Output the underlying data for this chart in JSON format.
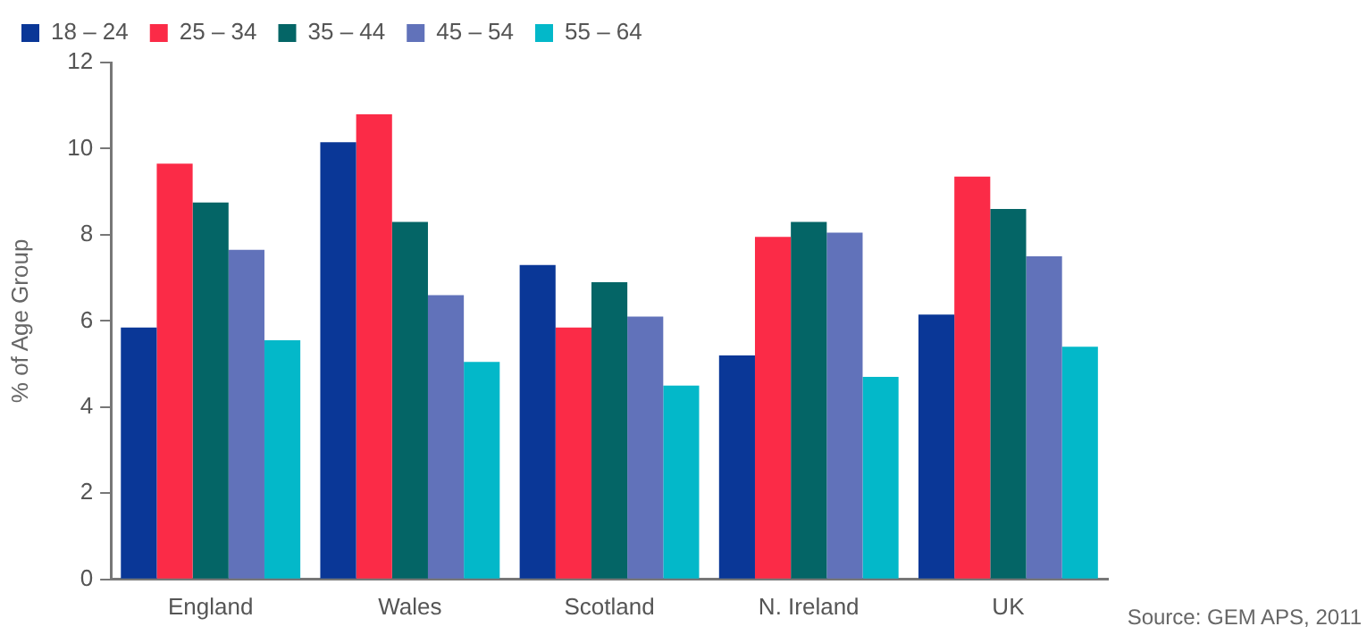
{
  "chart_data": {
    "type": "bar",
    "ylabel": "% of Age Group",
    "categories": [
      "England",
      "Wales",
      "Scotland",
      "N. Ireland",
      "UK"
    ],
    "series": [
      {
        "name": "18 – 24",
        "color": "#0a3797",
        "values": [
          5.85,
          10.15,
          7.3,
          5.2,
          6.15
        ]
      },
      {
        "name": "25 – 34",
        "color": "#fb2b47",
        "values": [
          9.65,
          10.8,
          5.85,
          7.95,
          9.35
        ]
      },
      {
        "name": "35 – 44",
        "color": "#046566",
        "values": [
          8.75,
          8.3,
          6.9,
          8.3,
          8.6
        ]
      },
      {
        "name": "45 – 54",
        "color": "#6172ba",
        "values": [
          7.65,
          6.6,
          6.1,
          8.05,
          7.5
        ]
      },
      {
        "name": "55 – 64",
        "color": "#03b8c9",
        "values": [
          5.55,
          5.05,
          4.5,
          4.7,
          5.4
        ]
      }
    ],
    "ylim": [
      0,
      12
    ],
    "yticks": [
      0,
      2,
      4,
      6,
      8,
      10,
      12
    ],
    "grid": false,
    "legend": "top left",
    "annotations": [
      "Source: GEM APS, 2011"
    ]
  }
}
